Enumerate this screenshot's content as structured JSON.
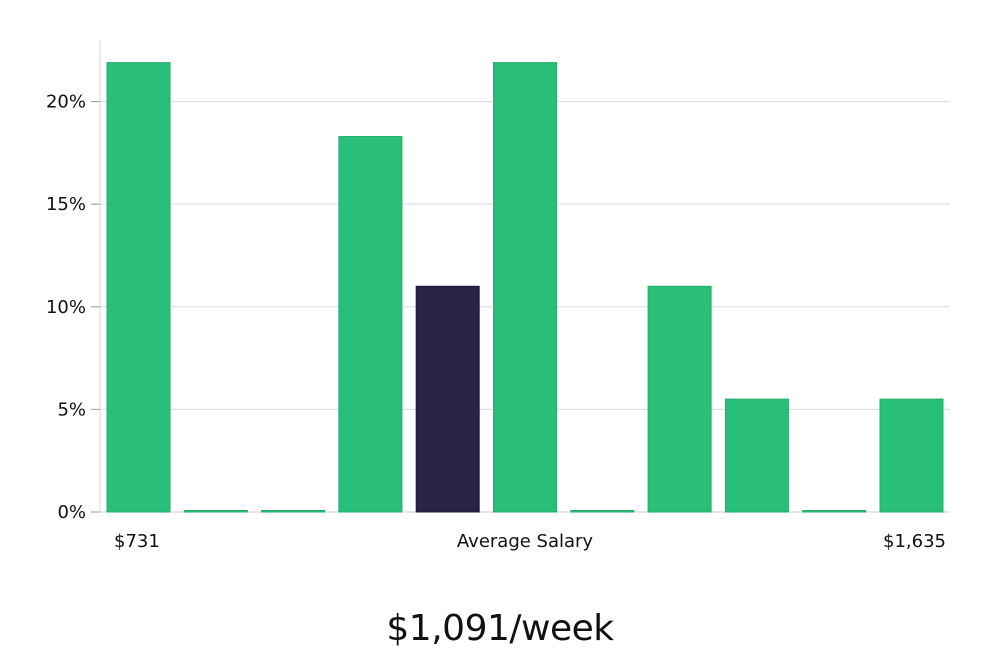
{
  "chart_data": {
    "type": "bar",
    "values": [
      21.9,
      0,
      0,
      18.3,
      11.0,
      21.9,
      0,
      11.0,
      5.5,
      0,
      5.5
    ],
    "highlight_index": 4,
    "ylim": [
      0,
      23
    ],
    "yticks": [
      {
        "value": 0,
        "label": "0%"
      },
      {
        "value": 5,
        "label": "5%"
      },
      {
        "value": 10,
        "label": "10%"
      },
      {
        "value": 15,
        "label": "15%"
      },
      {
        "value": 20,
        "label": "20%"
      }
    ],
    "x_min_label": "$731",
    "x_center_label": "Average Salary",
    "x_max_label": "$1,635",
    "grid": true,
    "bar_color": "#2abf78",
    "highlight_color": "#282445"
  },
  "headline": "$1,091/week"
}
